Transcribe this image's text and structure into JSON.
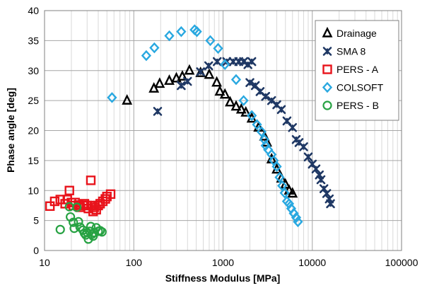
{
  "chart_data": {
    "type": "scatter",
    "xlabel": "Stiffness Modulus [MPa]",
    "ylabel": "Phase angle [deg]",
    "x_scale": "log",
    "xlim": [
      10,
      100000
    ],
    "ylim": [
      0,
      40
    ],
    "x_ticks": [
      "10",
      "100",
      "1000",
      "10000",
      "100000"
    ],
    "y_ticks": [
      "0",
      "5",
      "10",
      "15",
      "20",
      "25",
      "30",
      "35",
      "40"
    ],
    "grid": "major and minor",
    "legend_position": "top-right",
    "series": [
      {
        "name": "Drainage",
        "marker": "triangle",
        "color": "#000000",
        "points": [
          [
            84,
            25.0
          ],
          [
            168,
            27.0
          ],
          [
            195,
            27.8
          ],
          [
            250,
            28.3
          ],
          [
            300,
            28.7
          ],
          [
            350,
            29.0
          ],
          [
            420,
            30.0
          ],
          [
            560,
            29.6
          ],
          [
            700,
            29.3
          ],
          [
            850,
            28.0
          ],
          [
            920,
            26.5
          ],
          [
            1050,
            26.0
          ],
          [
            1200,
            24.7
          ],
          [
            1400,
            24.0
          ],
          [
            1600,
            23.5
          ],
          [
            1800,
            23.0
          ],
          [
            2100,
            22.0
          ],
          [
            2500,
            20.5
          ],
          [
            2900,
            19.0
          ],
          [
            3100,
            18.0
          ],
          [
            3500,
            15.2
          ],
          [
            4000,
            13.5
          ],
          [
            4500,
            12.0
          ],
          [
            5000,
            11.0
          ],
          [
            5500,
            10.0
          ],
          [
            6000,
            9.5
          ]
        ]
      },
      {
        "name": "SMA 8",
        "marker": "x-star",
        "color": "#1f3864",
        "points": [
          [
            185,
            23.2
          ],
          [
            340,
            27.5
          ],
          [
            400,
            28.2
          ],
          [
            560,
            29.8
          ],
          [
            690,
            30.8
          ],
          [
            860,
            31.5
          ],
          [
            1100,
            31.5
          ],
          [
            1300,
            31.5
          ],
          [
            1500,
            31.5
          ],
          [
            1700,
            31.5
          ],
          [
            1900,
            31.0
          ],
          [
            2100,
            31.5
          ],
          [
            2000,
            28.0
          ],
          [
            2300,
            27.5
          ],
          [
            2600,
            26.5
          ],
          [
            3000,
            25.7
          ],
          [
            3500,
            25.0
          ],
          [
            4000,
            24.3
          ],
          [
            4500,
            23.5
          ],
          [
            5200,
            21.6
          ],
          [
            6000,
            20.5
          ],
          [
            6600,
            18.5
          ],
          [
            7100,
            18.0
          ],
          [
            8000,
            17.3
          ],
          [
            9000,
            15.6
          ],
          [
            10000,
            14.4
          ],
          [
            11000,
            13.6
          ],
          [
            12000,
            12.6
          ],
          [
            12500,
            11.8
          ],
          [
            13500,
            10.3
          ],
          [
            14500,
            9.5
          ],
          [
            15500,
            8.6
          ],
          [
            16000,
            7.8
          ]
        ]
      },
      {
        "name": "PERS - A",
        "marker": "square",
        "color": "#e8131b",
        "points": [
          [
            11.5,
            7.4
          ],
          [
            13,
            8.2
          ],
          [
            15,
            8.5
          ],
          [
            17,
            7.8
          ],
          [
            18,
            8.5
          ],
          [
            19,
            10.0
          ],
          [
            20,
            8.0
          ],
          [
            21,
            7.5
          ],
          [
            22,
            8.0
          ],
          [
            24,
            7.6
          ],
          [
            25,
            7.2
          ],
          [
            27,
            7.5
          ],
          [
            28,
            7.8
          ],
          [
            30,
            7.5
          ],
          [
            31,
            7.0
          ],
          [
            33,
            11.7
          ],
          [
            34,
            7.5
          ],
          [
            35,
            6.5
          ],
          [
            36,
            7.2
          ],
          [
            38,
            6.8
          ],
          [
            40,
            7.5
          ],
          [
            42,
            7.8
          ],
          [
            45,
            8.2
          ],
          [
            48,
            8.6
          ],
          [
            50,
            9.0
          ],
          [
            55,
            9.4
          ]
        ]
      },
      {
        "name": "COLSOFT",
        "marker": "diamond",
        "color": "#29a8e0",
        "points": [
          [
            57,
            25.5
          ],
          [
            138,
            32.5
          ],
          [
            170,
            33.8
          ],
          [
            250,
            35.8
          ],
          [
            340,
            36.5
          ],
          [
            480,
            36.8
          ],
          [
            510,
            36.5
          ],
          [
            720,
            35.0
          ],
          [
            880,
            33.7
          ],
          [
            1050,
            31.0
          ],
          [
            1400,
            28.5
          ],
          [
            1700,
            25.0
          ],
          [
            2100,
            22.5
          ],
          [
            2400,
            21.0
          ],
          [
            2700,
            19.8
          ],
          [
            2900,
            18.5
          ],
          [
            3000,
            17.5
          ],
          [
            3200,
            16.8
          ],
          [
            3500,
            16.0
          ],
          [
            3700,
            15.0
          ],
          [
            4000,
            14.0
          ],
          [
            4300,
            12.2
          ],
          [
            4600,
            10.8
          ],
          [
            4900,
            9.6
          ],
          [
            5200,
            8.2
          ],
          [
            5500,
            7.8
          ],
          [
            5800,
            7.0
          ],
          [
            6200,
            6.2
          ],
          [
            6600,
            5.5
          ],
          [
            6900,
            4.8
          ]
        ]
      },
      {
        "name": "PERS - B",
        "marker": "circle",
        "color": "#27a243",
        "points": [
          [
            15,
            3.5
          ],
          [
            19,
            7.3
          ],
          [
            19.5,
            5.6
          ],
          [
            21,
            4.7
          ],
          [
            21.5,
            3.7
          ],
          [
            23,
            7.2
          ],
          [
            24,
            4.8
          ],
          [
            25,
            3.9
          ],
          [
            27,
            3.4
          ],
          [
            28,
            2.9
          ],
          [
            29,
            2.6
          ],
          [
            30,
            3.0
          ],
          [
            31,
            1.9
          ],
          [
            32,
            3.2
          ],
          [
            33,
            4.0
          ],
          [
            34,
            2.7
          ],
          [
            35,
            2.4
          ],
          [
            36,
            3.0
          ],
          [
            38,
            3.8
          ],
          [
            40,
            3.2
          ],
          [
            42,
            3.3
          ],
          [
            44,
            3.1
          ]
        ]
      }
    ]
  }
}
